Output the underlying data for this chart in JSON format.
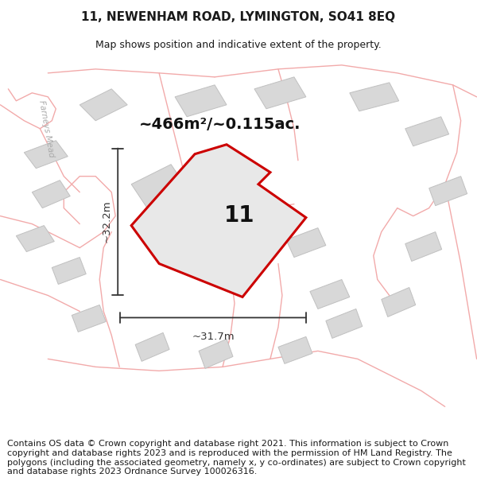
{
  "title": "11, NEWENHAM ROAD, LYMINGTON, SO41 8EQ",
  "subtitle": "Map shows position and indicative extent of the property.",
  "footer": "Contains OS data © Crown copyright and database right 2021. This information is subject to Crown copyright and database rights 2023 and is reproduced with the permission of HM Land Registry. The polygons (including the associated geometry, namely x, y co-ordinates) are subject to Crown copyright and database rights 2023 Ordnance Survey 100026316.",
  "area_label": "~466m²/~0.115ac.",
  "width_label": "~31.7m",
  "height_label": "~32.2m",
  "property_number": "11",
  "map_bg": "#efefef",
  "road_color": "#f2aaaa",
  "building_color": "#d8d8d8",
  "building_edge": "#c0c0c0",
  "property_fill": "#e8e8e8",
  "property_edge": "#cc0000",
  "property_edge_width": 2.2,
  "dim_color": "#333333",
  "road_label_color": "#aaaaaa",
  "road_label": "Farneys Mead",
  "title_fontsize": 11,
  "subtitle_fontsize": 9,
  "footer_fontsize": 8,
  "road_lw": 1.0
}
